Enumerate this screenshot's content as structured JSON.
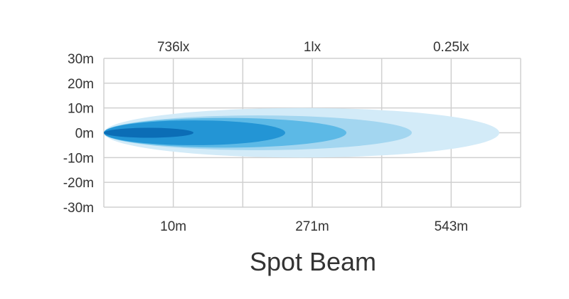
{
  "chart_data": {
    "type": "area",
    "title": "Spot Beam",
    "y_ticks": [
      "30m",
      "20m",
      "10m",
      "0m",
      "-10m",
      "-20m",
      "-30m"
    ],
    "ylim": [
      -30,
      30
    ],
    "x_distance_labels": [
      "10m",
      "271m",
      "543m"
    ],
    "top_lux_labels": [
      "736lx",
      "1lx",
      "0.25lx"
    ],
    "grid": true,
    "beam_zones": [
      {
        "color": "#d3ebf8",
        "half_width_m": 10
      },
      {
        "color": "#a3d6f0",
        "half_width_m": 7
      },
      {
        "color": "#5cb9e6",
        "half_width_m": 6
      },
      {
        "color": "#2395d5",
        "half_width_m": 5
      },
      {
        "color": "#0b6db6",
        "half_width_m": 2
      }
    ]
  }
}
